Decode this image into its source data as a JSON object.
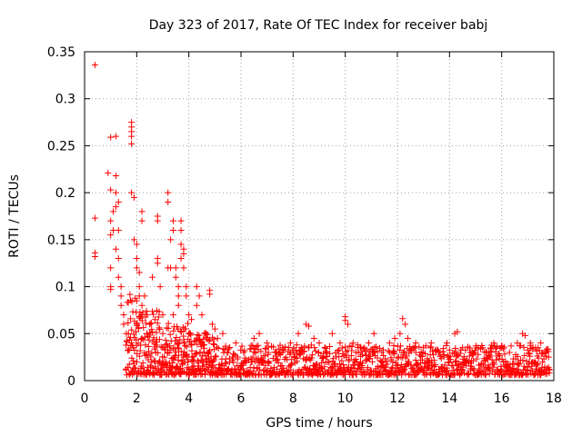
{
  "chart_data": {
    "type": "scatter",
    "title": "Day 323 of 2017, Rate Of TEC Index for receiver babj",
    "xlabel": "GPS time / hours",
    "ylabel": "ROTI / TECUs",
    "xlim": [
      0,
      18
    ],
    "ylim": [
      0,
      0.35
    ],
    "xticks": [
      0,
      2,
      4,
      6,
      8,
      10,
      12,
      14,
      16,
      18
    ],
    "xtick_labels": [
      "0",
      "2",
      "4",
      "6",
      "8",
      "10",
      "12",
      "14",
      "16",
      "18"
    ],
    "yticks": [
      0,
      0.05,
      0.1,
      0.15,
      0.2,
      0.25,
      0.3,
      0.35
    ],
    "ytick_labels": [
      "0",
      "0.05",
      "0.1",
      "0.15",
      "0.2",
      "0.25",
      "0.3",
      "0.35"
    ],
    "grid": true,
    "marker": "+",
    "color": "#ff0000",
    "series": [
      {
        "name": "ROTI",
        "points": [
          [
            0.4,
            0.336
          ],
          [
            0.4,
            0.173
          ],
          [
            0.4,
            0.136
          ],
          [
            0.4,
            0.132
          ],
          [
            0.9,
            0.221
          ],
          [
            1.0,
            0.259
          ],
          [
            1.0,
            0.203
          ],
          [
            1.0,
            0.17
          ],
          [
            1.0,
            0.155
          ],
          [
            1.0,
            0.12
          ],
          [
            1.0,
            0.1
          ],
          [
            1.0,
            0.097
          ],
          [
            1.2,
            0.26
          ],
          [
            1.2,
            0.218
          ],
          [
            1.2,
            0.2
          ],
          [
            1.2,
            0.185
          ],
          [
            1.1,
            0.18
          ],
          [
            1.1,
            0.16
          ],
          [
            1.2,
            0.14
          ],
          [
            1.3,
            0.19
          ],
          [
            1.3,
            0.16
          ],
          [
            1.3,
            0.13
          ],
          [
            1.3,
            0.11
          ],
          [
            1.4,
            0.1
          ],
          [
            1.4,
            0.09
          ],
          [
            1.4,
            0.08
          ],
          [
            1.5,
            0.07
          ],
          [
            1.5,
            0.06
          ],
          [
            1.6,
            0.05
          ],
          [
            1.8,
            0.275
          ],
          [
            1.8,
            0.27
          ],
          [
            1.8,
            0.265
          ],
          [
            1.8,
            0.26
          ],
          [
            1.8,
            0.252
          ],
          [
            1.8,
            0.2
          ],
          [
            1.9,
            0.195
          ],
          [
            1.9,
            0.15
          ],
          [
            2.0,
            0.145
          ],
          [
            2.0,
            0.13
          ],
          [
            2.0,
            0.12
          ],
          [
            2.1,
            0.115
          ],
          [
            2.1,
            0.1
          ],
          [
            2.1,
            0.09
          ],
          [
            2.2,
            0.18
          ],
          [
            2.2,
            0.17
          ],
          [
            2.0,
            0.085
          ],
          [
            2.2,
            0.08
          ],
          [
            2.4,
            0.07
          ],
          [
            2.5,
            0.06
          ],
          [
            2.7,
            0.065
          ],
          [
            2.8,
            0.13
          ],
          [
            2.8,
            0.125
          ],
          [
            2.8,
            0.175
          ],
          [
            2.8,
            0.17
          ],
          [
            2.9,
            0.1
          ],
          [
            3.0,
            0.07
          ],
          [
            3.2,
            0.2
          ],
          [
            3.2,
            0.19
          ],
          [
            3.3,
            0.15
          ],
          [
            3.3,
            0.12
          ],
          [
            3.4,
            0.17
          ],
          [
            3.4,
            0.16
          ],
          [
            3.5,
            0.12
          ],
          [
            3.5,
            0.11
          ],
          [
            3.6,
            0.1
          ],
          [
            3.6,
            0.09
          ],
          [
            3.6,
            0.08
          ],
          [
            3.7,
            0.17
          ],
          [
            3.7,
            0.16
          ],
          [
            3.7,
            0.145
          ],
          [
            3.7,
            0.13
          ],
          [
            3.8,
            0.14
          ],
          [
            3.8,
            0.135
          ],
          [
            3.8,
            0.12
          ],
          [
            3.9,
            0.1
          ],
          [
            3.9,
            0.09
          ],
          [
            4.0,
            0.07
          ],
          [
            4.1,
            0.065
          ],
          [
            4.3,
            0.1
          ],
          [
            4.4,
            0.09
          ],
          [
            4.5,
            0.07
          ],
          [
            4.6,
            0.05
          ],
          [
            4.8,
            0.096
          ],
          [
            4.8,
            0.092
          ],
          [
            4.9,
            0.06
          ],
          [
            5.0,
            0.055
          ],
          [
            4.3,
            0.08
          ],
          [
            3.2,
            0.12
          ],
          [
            2.6,
            0.11
          ],
          [
            2.3,
            0.09
          ],
          [
            2.0,
            0.06
          ],
          [
            1.8,
            0.04
          ],
          [
            2.4,
            0.05
          ],
          [
            3.0,
            0.05
          ],
          [
            3.4,
            0.07
          ],
          [
            4.0,
            0.05
          ],
          [
            4.5,
            0.04
          ],
          [
            5.1,
            0.045
          ],
          [
            5.3,
            0.05
          ],
          [
            5.5,
            0.03
          ],
          [
            5.8,
            0.04
          ],
          [
            6.1,
            0.03
          ],
          [
            6.5,
            0.045
          ],
          [
            6.7,
            0.05
          ],
          [
            7.0,
            0.04
          ],
          [
            7.3,
            0.03
          ],
          [
            7.6,
            0.035
          ],
          [
            7.9,
            0.04
          ],
          [
            8.2,
            0.05
          ],
          [
            8.5,
            0.06
          ],
          [
            8.6,
            0.058
          ],
          [
            8.8,
            0.045
          ],
          [
            9.0,
            0.04
          ],
          [
            9.3,
            0.03
          ],
          [
            9.5,
            0.05
          ],
          [
            9.8,
            0.04
          ],
          [
            10.0,
            0.068
          ],
          [
            10.0,
            0.064
          ],
          [
            10.1,
            0.06
          ],
          [
            10.3,
            0.04
          ],
          [
            10.6,
            0.035
          ],
          [
            10.9,
            0.04
          ],
          [
            11.1,
            0.05
          ],
          [
            11.4,
            0.03
          ],
          [
            11.7,
            0.04
          ],
          [
            11.9,
            0.045
          ],
          [
            12.1,
            0.05
          ],
          [
            12.2,
            0.066
          ],
          [
            12.3,
            0.06
          ],
          [
            12.4,
            0.045
          ],
          [
            12.7,
            0.04
          ],
          [
            13.0,
            0.035
          ],
          [
            13.3,
            0.04
          ],
          [
            13.6,
            0.03
          ],
          [
            13.9,
            0.04
          ],
          [
            14.2,
            0.05
          ],
          [
            14.3,
            0.052
          ],
          [
            14.5,
            0.035
          ],
          [
            14.8,
            0.03
          ],
          [
            15.1,
            0.035
          ],
          [
            15.4,
            0.03
          ],
          [
            15.7,
            0.04
          ],
          [
            16.0,
            0.035
          ],
          [
            16.3,
            0.03
          ],
          [
            16.6,
            0.04
          ],
          [
            16.8,
            0.05
          ],
          [
            16.9,
            0.048
          ],
          [
            17.1,
            0.04
          ],
          [
            17.3,
            0.035
          ],
          [
            17.5,
            0.04
          ],
          [
            17.7,
            0.03
          ],
          [
            17.8,
            0.025
          ]
        ]
      }
    ],
    "noise_seed": 20171119
  }
}
